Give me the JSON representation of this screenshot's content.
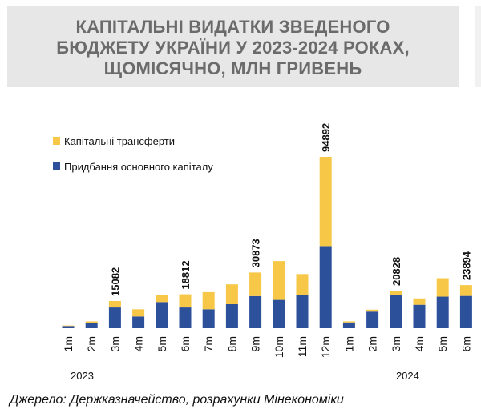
{
  "title_lines": [
    "КАПІТАЛЬНІ ВИДАТКИ ЗВЕДЕНОГО",
    "БЮДЖЕТУ УКРАЇНИ У 2023-2024 РОКАХ,",
    "ЩОМІСЯЧНО, МЛН ГРИВЕНЬ"
  ],
  "source": "Джерело: Держказначейство, розрахунки Мінекономіки",
  "colors": {
    "transfers": "#f7c747",
    "fixed_capital": "#2d509b",
    "title_bg": "#e7e7e7",
    "title_text": "#6b6b6b"
  },
  "chart_data": {
    "type": "bar",
    "stacked": true,
    "title": "КАПІТАЛЬНІ ВИДАТКИ ЗВЕДЕНОГО БЮДЖЕТУ УКРАЇНИ У 2023-2024 РОКАХ, ЩОМІСЯЧНО, МЛН ГРИВЕНЬ",
    "categories": [
      "1m",
      "2m",
      "3m",
      "4m",
      "5m",
      "6m",
      "7m",
      "8m",
      "9m",
      "10m",
      "11m",
      "12m",
      "1m",
      "2m",
      "3m",
      "4m",
      "5m",
      "6m"
    ],
    "year_groups": [
      {
        "label": "2023",
        "count": 12
      },
      {
        "label": "2024",
        "count": 6
      }
    ],
    "series": [
      {
        "name": "Придбання основного капіталу",
        "values": [
          1200,
          3000,
          11500,
          6500,
          14500,
          11500,
          10500,
          13300,
          17800,
          15700,
          18300,
          45500,
          3200,
          9200,
          18300,
          13000,
          17500,
          17900
        ]
      },
      {
        "name": "Капітальні трансферти",
        "values": [
          300,
          800,
          3582,
          4000,
          3700,
          7312,
          9500,
          11000,
          13073,
          21500,
          11700,
          49392,
          600,
          1100,
          2528,
          3500,
          10200,
          5994
        ]
      }
    ],
    "totals": [
      1500,
      3800,
      15082,
      10500,
      18200,
      18812,
      20000,
      24300,
      30873,
      37200,
      30000,
      94892,
      3800,
      10300,
      20828,
      16500,
      27700,
      23894
    ],
    "data_labels": [
      {
        "index": 2,
        "text": "15082"
      },
      {
        "index": 5,
        "text": "18812"
      },
      {
        "index": 8,
        "text": "30873"
      },
      {
        "index": 11,
        "text": "94892"
      },
      {
        "index": 14,
        "text": "20828"
      },
      {
        "index": 17,
        "text": "23894"
      }
    ],
    "legend": [
      "Капітальні трансферти",
      "Придбання основного капіталу"
    ],
    "legend_position": "top-left",
    "ylim": [
      0,
      94892
    ],
    "grid": false
  }
}
